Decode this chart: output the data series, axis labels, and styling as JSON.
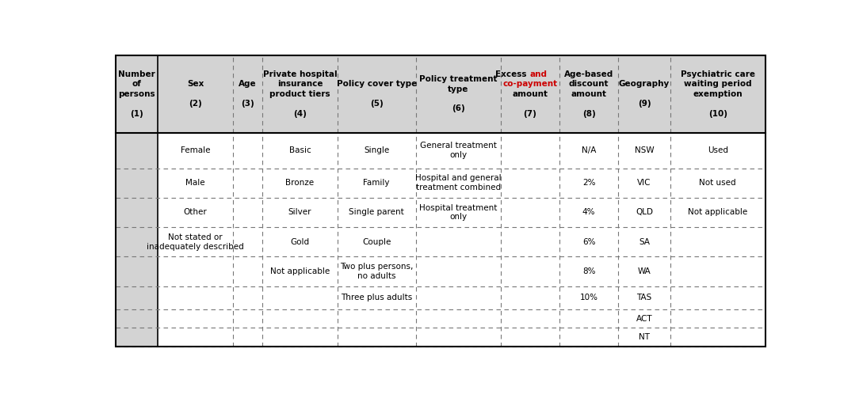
{
  "headers": [
    {
      "lines": [
        "Number",
        "of",
        "persons"
      ],
      "num": "(1)",
      "bold": true
    },
    {
      "lines": [
        "Sex"
      ],
      "num": "(2)",
      "bold": true
    },
    {
      "lines": [
        "Age"
      ],
      "num": "(3)",
      "bold": true
    },
    {
      "lines": [
        "Private hospital",
        "insurance",
        "product tiers"
      ],
      "num": "(4)",
      "bold": true
    },
    {
      "lines": [
        "Policy cover type"
      ],
      "num": "(5)",
      "bold": true
    },
    {
      "lines": [
        "Policy treatment",
        "type"
      ],
      "num": "(6)",
      "bold": true
    },
    {
      "lines": [
        "Excess and",
        "co-payment",
        "amount"
      ],
      "num": "(7)",
      "bold": true,
      "mixed_color": true
    },
    {
      "lines": [
        "Age-based",
        "discount",
        "amount"
      ],
      "num": "(8)",
      "bold": true
    },
    {
      "lines": [
        "Geography"
      ],
      "num": "(9)",
      "bold": true
    },
    {
      "lines": [
        "Psychiatric care",
        "waiting period",
        "exemption"
      ],
      "num": "(10)",
      "bold": true
    }
  ],
  "col_widths_rel": [
    6.5,
    11.5,
    4.5,
    11.5,
    12.0,
    13.0,
    9.0,
    9.0,
    8.0,
    14.5
  ],
  "rows": [
    [
      "",
      "Female",
      "",
      "Basic",
      "Single",
      "General treatment\nonly",
      "",
      "N/A",
      "NSW",
      "Used"
    ],
    [
      "",
      "Male",
      "",
      "Bronze",
      "Family",
      "Hospital and general\ntreatment combined",
      "",
      "2%",
      "VIC",
      "Not used"
    ],
    [
      "",
      "Other",
      "",
      "Silver",
      "Single parent",
      "Hospital treatment\nonly",
      "",
      "4%",
      "QLD",
      "Not applicable"
    ],
    [
      "",
      "Not stated or\ninadequately described",
      "",
      "Gold",
      "Couple",
      "",
      "",
      "6%",
      "SA",
      ""
    ],
    [
      "",
      "",
      "",
      "Not applicable",
      "Two plus persons,\nno adults",
      "",
      "",
      "8%",
      "WA",
      ""
    ],
    [
      "",
      "",
      "",
      "",
      "Three plus adults",
      "",
      "",
      "10%",
      "TAS",
      ""
    ],
    [
      "",
      "",
      "",
      "",
      "",
      "",
      "",
      "",
      "ACT",
      ""
    ],
    [
      "",
      "",
      "",
      "",
      "",
      "",
      "",
      "",
      "NT",
      ""
    ]
  ],
  "row_heights_rel": [
    2.3,
    1.9,
    1.9,
    1.9,
    1.9,
    1.5,
    1.2,
    1.2
  ],
  "header_bg": "#d3d3d3",
  "col1_bg": "#d3d3d3",
  "border_color": "#000000",
  "dashed_color": "#777777",
  "text_color": "#000000",
  "red_color": "#cc0000",
  "figsize": [
    10.84,
    5.03
  ],
  "dpi": 100,
  "font_size": 7.5
}
